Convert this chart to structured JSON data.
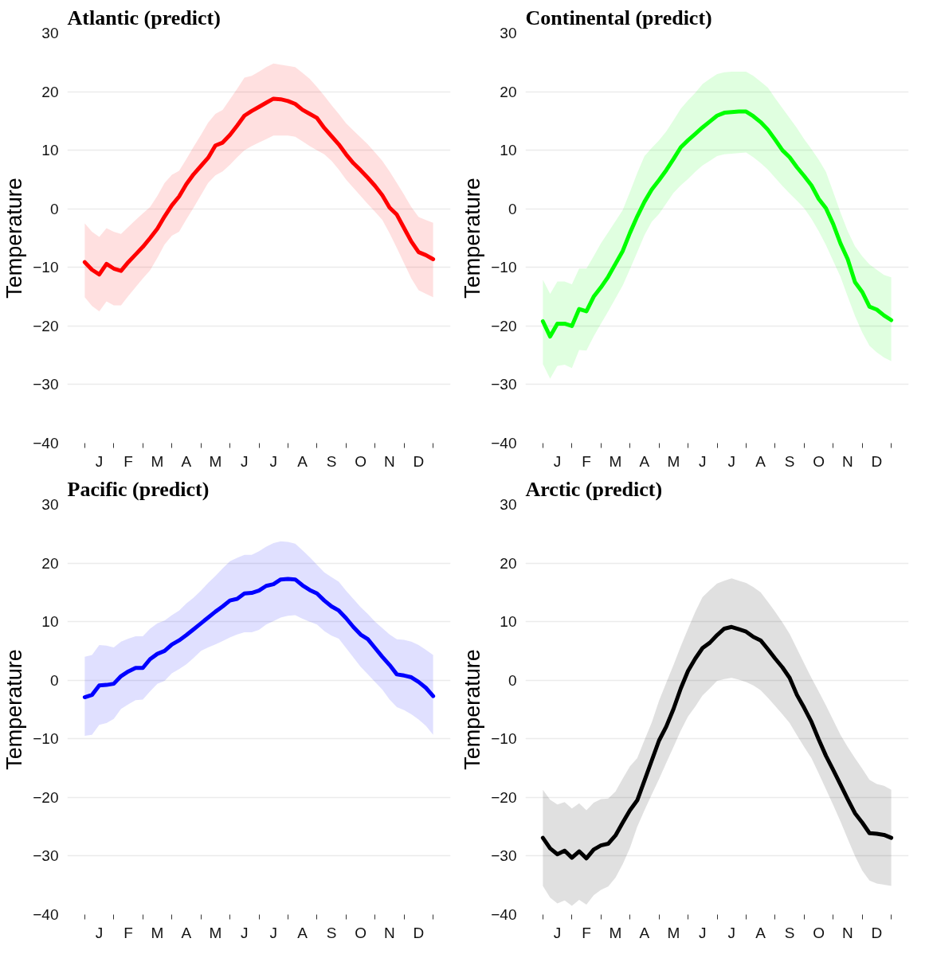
{
  "chart_data": [
    {
      "type": "line",
      "title": "Atlantic (predict)",
      "ylabel": "Temperature",
      "ylim": [
        -40,
        30
      ],
      "yticks": [
        -40,
        -30,
        -20,
        -10,
        0,
        10,
        20,
        30
      ],
      "grid": "y",
      "categories": [
        null,
        null,
        "J",
        null,
        null,
        null,
        "F",
        null,
        null,
        null,
        "M",
        null,
        null,
        null,
        "A",
        null,
        null,
        null,
        "M",
        null,
        null,
        null,
        "J",
        null,
        null,
        null,
        "J",
        null,
        null,
        null,
        "A",
        null,
        null,
        null,
        "S",
        null,
        null,
        null,
        "O",
        null,
        null,
        null,
        "N",
        null,
        null,
        null,
        "D",
        null,
        null
      ],
      "series": [
        {
          "color": "#ff0000",
          "values": [
            -9.1,
            -10.4,
            -11.2,
            -9.4,
            -10.2,
            -10.6,
            -9.1,
            -7.8,
            -6.5,
            -5,
            -3.4,
            -1.3,
            0.6,
            2.1,
            4.2,
            5.9,
            7.3,
            8.7,
            10.8,
            11.3,
            12.6,
            14.2,
            15.9,
            16.7,
            17.4,
            18.1,
            18.8,
            18.7,
            18.4,
            17.9,
            16.9,
            16.2,
            15.5,
            13.8,
            12.4,
            11,
            9.3,
            7.8,
            6.6,
            5.3,
            3.9,
            2.3,
            0.2,
            -1,
            -3.3,
            -5.6,
            -7.4,
            -7.9,
            -8.6
          ],
          "upper": [
            -2.5,
            -3.9,
            -4.8,
            -3.3,
            -3.9,
            -4.3,
            -3.1,
            -1.9,
            -0.8,
            0.3,
            2.2,
            4.4,
            5.8,
            6.5,
            8.5,
            10.6,
            12.6,
            14.7,
            16.2,
            16.9,
            18.7,
            20.5,
            22.4,
            22.7,
            23.4,
            24.2,
            24.8,
            24.6,
            24.4,
            24.2,
            23.2,
            22.2,
            20.8,
            19.3,
            17.7,
            16.2,
            14.6,
            13.4,
            12.2,
            11,
            9.6,
            8.2,
            6.4,
            4.4,
            2.4,
            0.3,
            -1.4,
            -1.9,
            -2.4
          ],
          "lower": [
            -15.1,
            -16.6,
            -17.5,
            -15.8,
            -16.5,
            -16.5,
            -14.9,
            -13.4,
            -11.9,
            -10.5,
            -8.4,
            -6.1,
            -4.6,
            -3.9,
            -1.8,
            0.2,
            2.3,
            4.4,
            5.7,
            6.4,
            7.5,
            8.8,
            10,
            10.7,
            11.3,
            11.9,
            12.5,
            12.5,
            12.5,
            12.3,
            11.5,
            10.7,
            10,
            9.3,
            8.2,
            6.7,
            5,
            3.6,
            2.2,
            0.8,
            -0.5,
            -1.9,
            -4.2,
            -6.7,
            -9.3,
            -11.9,
            -13.9,
            -14.5,
            -15.1
          ]
        }
      ]
    },
    {
      "type": "line",
      "title": "Continental (predict)",
      "ylabel": "Temperature",
      "ylim": [
        -40,
        30
      ],
      "yticks": [
        -40,
        -30,
        -20,
        -10,
        0,
        10,
        20,
        30
      ],
      "grid": "y",
      "categories": [
        null,
        null,
        "J",
        null,
        null,
        null,
        "F",
        null,
        null,
        null,
        "M",
        null,
        null,
        null,
        "A",
        null,
        null,
        null,
        "M",
        null,
        null,
        null,
        "J",
        null,
        null,
        null,
        "J",
        null,
        null,
        null,
        "A",
        null,
        null,
        null,
        "S",
        null,
        null,
        null,
        "O",
        null,
        null,
        null,
        "N",
        null,
        null,
        null,
        "D",
        null,
        null
      ],
      "series": [
        {
          "color": "#00ff00",
          "values": [
            -19.2,
            -21.8,
            -19.6,
            -19.6,
            -20,
            -17.1,
            -17.5,
            -15,
            -13.4,
            -11.6,
            -9.4,
            -7.2,
            -4.1,
            -1.3,
            1.2,
            3.3,
            4.9,
            6.6,
            8.5,
            10.5,
            11.7,
            12.8,
            13.9,
            14.9,
            15.9,
            16.4,
            16.5,
            16.6,
            16.6,
            15.8,
            14.8,
            13.5,
            11.8,
            10,
            8.8,
            7.1,
            5.6,
            4,
            1.7,
            0.1,
            -2.6,
            -5.9,
            -8.6,
            -12.5,
            -14.2,
            -16.7,
            -17.2,
            -18.2,
            -19
          ],
          "upper": [
            -12.1,
            -14.5,
            -12.4,
            -12.4,
            -12.9,
            -10.2,
            -10.2,
            -8.1,
            -5.9,
            -4,
            -2.1,
            -0.2,
            2.9,
            6.1,
            9,
            10.4,
            11.7,
            13.2,
            15.1,
            17.1,
            18.5,
            19.8,
            21.3,
            22.2,
            23,
            23.3,
            23.4,
            23.4,
            23.4,
            22.7,
            21.7,
            20.7,
            18.9,
            17.2,
            15.5,
            13.8,
            11.9,
            10.2,
            8.4,
            6.3,
            2.9,
            -0.6,
            -3.8,
            -6.4,
            -8.1,
            -9.5,
            -10.4,
            -11.3,
            -11.7
          ],
          "lower": [
            -26.5,
            -29,
            -26.8,
            -26.6,
            -27.2,
            -24.1,
            -24.2,
            -21.8,
            -19.6,
            -17.5,
            -15.3,
            -13.1,
            -10.3,
            -7.4,
            -4.5,
            -2.2,
            -0.9,
            0.9,
            2.7,
            4,
            5.1,
            6.3,
            7.4,
            8.2,
            9,
            9.3,
            9.4,
            9.5,
            9.6,
            8.8,
            7.8,
            6.7,
            5.3,
            3.9,
            2.6,
            1.4,
            0.1,
            -1.7,
            -3.8,
            -6.2,
            -8.9,
            -11.6,
            -15,
            -18.3,
            -21.1,
            -23.4,
            -24.5,
            -25.4,
            -26
          ]
        }
      ]
    },
    {
      "type": "line",
      "title": "Pacific (predict)",
      "ylabel": "Temperature",
      "ylim": [
        -40,
        30
      ],
      "yticks": [
        -40,
        -30,
        -20,
        -10,
        0,
        10,
        20,
        30
      ],
      "grid": "y",
      "categories": [
        null,
        null,
        "J",
        null,
        null,
        null,
        "F",
        null,
        null,
        null,
        "M",
        null,
        null,
        null,
        "A",
        null,
        null,
        null,
        "M",
        null,
        null,
        null,
        "J",
        null,
        null,
        null,
        "J",
        null,
        null,
        null,
        "A",
        null,
        null,
        null,
        "S",
        null,
        null,
        null,
        "O",
        null,
        null,
        null,
        "N",
        null,
        null,
        null,
        "D",
        null,
        null
      ],
      "series": [
        {
          "color": "#0000ff",
          "values": [
            -2.9,
            -2.5,
            -0.9,
            -0.8,
            -0.6,
            0.7,
            1.5,
            2.1,
            2.1,
            3.6,
            4.5,
            5,
            6.1,
            6.8,
            7.7,
            8.7,
            9.7,
            10.7,
            11.7,
            12.6,
            13.6,
            13.9,
            14.8,
            14.9,
            15.3,
            16.1,
            16.4,
            17.2,
            17.3,
            17.2,
            16.2,
            15.4,
            14.8,
            13.6,
            12.6,
            11.9,
            10.6,
            9.1,
            7.8,
            7,
            5.5,
            4,
            2.6,
            1,
            0.8,
            0.5,
            -0.3,
            -1.3,
            -2.7
          ],
          "upper": [
            4,
            4.3,
            6,
            5.9,
            5.6,
            6.6,
            7.1,
            7.5,
            7.5,
            8.8,
            9.7,
            10.2,
            11.1,
            11.9,
            13.1,
            14.1,
            15.3,
            16.6,
            17.8,
            19.1,
            20.3,
            20.9,
            21.4,
            21.4,
            22,
            22.8,
            23.4,
            23.7,
            23.6,
            23.3,
            22.2,
            21,
            19.7,
            18.4,
            17.6,
            16.8,
            15.3,
            13.9,
            12.5,
            11.3,
            10,
            8.9,
            7.8,
            7,
            6.9,
            6.6,
            6,
            5.2,
            4.3
          ],
          "lower": [
            -9.5,
            -9.3,
            -7.6,
            -7.3,
            -6.6,
            -4.9,
            -4.1,
            -3.4,
            -3.3,
            -1.9,
            -0.6,
            -0.1,
            1.2,
            1.9,
            2.7,
            3.8,
            5,
            5.6,
            6.1,
            6.7,
            7.3,
            7.8,
            8.2,
            8.2,
            8.6,
            9.5,
            10.1,
            10.7,
            11,
            11.1,
            10.5,
            10,
            9.5,
            8.4,
            7.6,
            7.1,
            5.5,
            3.9,
            2.3,
            1,
            -0.3,
            -1.6,
            -3.3,
            -4.6,
            -5.1,
            -5.8,
            -6.7,
            -7.8,
            -9.3
          ]
        }
      ]
    },
    {
      "type": "line",
      "title": "Arctic (predict)",
      "ylabel": "Temperature",
      "ylim": [
        -40,
        30
      ],
      "yticks": [
        -40,
        -30,
        -20,
        -10,
        0,
        10,
        20,
        30
      ],
      "grid": "y",
      "categories": [
        null,
        null,
        "J",
        null,
        null,
        null,
        "F",
        null,
        null,
        null,
        "M",
        null,
        null,
        null,
        "A",
        null,
        null,
        null,
        "M",
        null,
        null,
        null,
        "J",
        null,
        null,
        null,
        "J",
        null,
        null,
        null,
        "A",
        null,
        null,
        null,
        "S",
        null,
        null,
        null,
        "O",
        null,
        null,
        null,
        "N",
        null,
        null,
        null,
        "D",
        null,
        null
      ],
      "series": [
        {
          "color": "#000000",
          "values": [
            -26.9,
            -28.7,
            -29.7,
            -29.1,
            -30.3,
            -29.2,
            -30.4,
            -28.9,
            -28.2,
            -27.9,
            -26.5,
            -24.3,
            -22.2,
            -20.5,
            -17.1,
            -13.7,
            -10.3,
            -7.9,
            -4.9,
            -1.4,
            1.6,
            3.7,
            5.5,
            6.4,
            7.7,
            8.8,
            9.1,
            8.7,
            8.3,
            7.4,
            6.8,
            5.3,
            3.7,
            2.2,
            0.4,
            -2.5,
            -4.7,
            -7.1,
            -10.1,
            -12.9,
            -15.3,
            -17.8,
            -20.3,
            -22.7,
            -24.3,
            -26.1,
            -26.2,
            -26.4,
            -26.9
          ],
          "upper": [
            -18.7,
            -20.4,
            -21.2,
            -20.8,
            -21.9,
            -21,
            -22.2,
            -20.9,
            -20.3,
            -20.2,
            -19,
            -16.8,
            -14.7,
            -13.3,
            -10.2,
            -7.2,
            -3.5,
            -0.4,
            2.6,
            5.8,
            8.8,
            11.7,
            14.2,
            15.4,
            16.5,
            17,
            17.4,
            17,
            16.6,
            15.9,
            15,
            13.4,
            11.7,
            9.9,
            7.9,
            5.4,
            2.9,
            0.4,
            -1.9,
            -4.3,
            -6.8,
            -9.3,
            -11.4,
            -13.3,
            -15.1,
            -17,
            -17.7,
            -18,
            -18.7
          ],
          "lower": [
            -35.1,
            -37.1,
            -38.1,
            -37.6,
            -38.5,
            -37.5,
            -38.3,
            -36.7,
            -35.8,
            -35.2,
            -33.7,
            -31.4,
            -28.6,
            -25,
            -22.2,
            -19.5,
            -16.9,
            -14.1,
            -11.4,
            -8.6,
            -6.2,
            -4.5,
            -2.6,
            -1.4,
            -0.1,
            0.2,
            0.4,
            0.1,
            -0.3,
            -0.9,
            -1.7,
            -3,
            -4.4,
            -5.8,
            -7.3,
            -9.4,
            -11.4,
            -13.3,
            -15.9,
            -18.6,
            -21.3,
            -24.1,
            -27.1,
            -30,
            -32.5,
            -34.2,
            -34.7,
            -34.9,
            -35.1
          ]
        }
      ]
    }
  ]
}
